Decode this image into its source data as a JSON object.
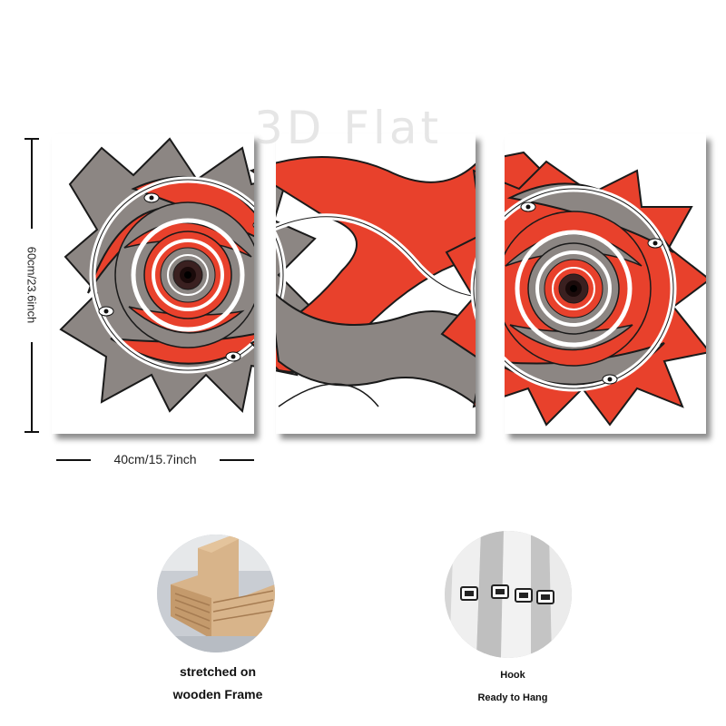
{
  "watermark": "3D Flat",
  "dimensions": {
    "height_label": "60cm/23.6inch",
    "width_label": "40cm/15.7inch"
  },
  "features": {
    "frame_caption_line1": "stretched on",
    "frame_caption_line2": "wooden Frame",
    "hook_caption_line1": "Hook",
    "hook_caption_line2": "Ready to Hang"
  },
  "colors": {
    "fish_red": "#e8412c",
    "fish_gray": "#8c8683",
    "outline": "#1a1a1a",
    "background": "#ffffff"
  },
  "panels": [
    "left",
    "middle",
    "right"
  ]
}
